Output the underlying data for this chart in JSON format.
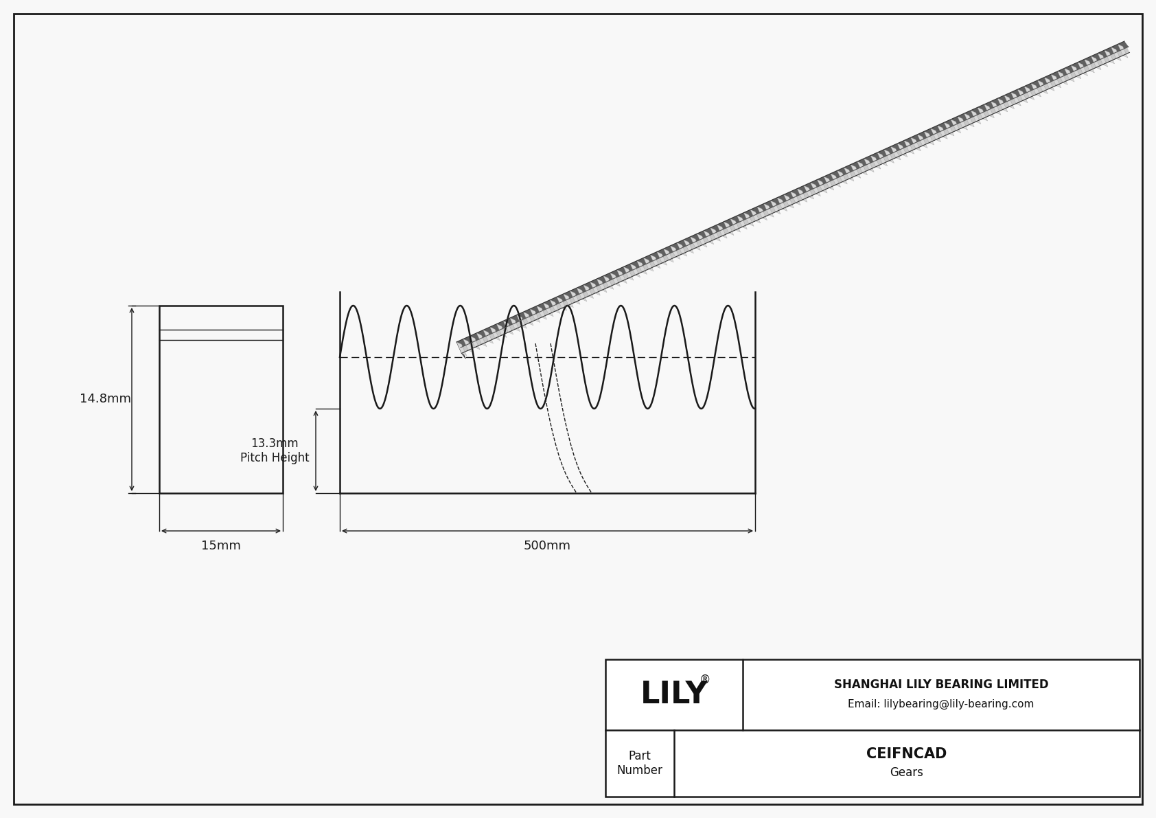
{
  "bg_color": "#f8f8f8",
  "line_color": "#1a1a1a",
  "dim_color": "#1a1a1a",
  "title_text": "CEIFNCAD",
  "subtitle_text": "Gears",
  "company": "SHANGHAI LILY BEARING LIMITED",
  "email": "Email: lilybearing@lily-bearing.com",
  "part_label": "Part\nNumber",
  "width_label": "15mm",
  "height_label": "14.8mm",
  "length_label": "500mm",
  "pitch_label": "13.3mm\nPitch Height",
  "logo_text": "LILY",
  "logo_symbol": "®"
}
